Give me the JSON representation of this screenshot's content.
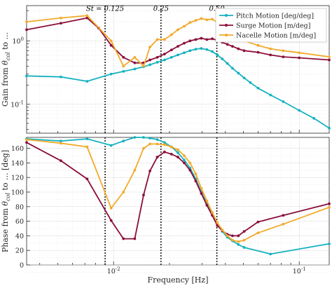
{
  "chart_data": [
    {
      "type": "line",
      "panel": "gain",
      "xscale": "log",
      "yscale": "log",
      "xlim": [
        0.0034,
        0.145
      ],
      "ylim": [
        0.035,
        3.6
      ],
      "ylabel": "Gain from θ_col to ...",
      "yticks": [
        {
          "value": 0.1,
          "label": "10^-1"
        },
        {
          "value": 1,
          "label": "10^0"
        }
      ],
      "grid": true,
      "legend": "top-right",
      "annotations": [
        {
          "x": 0.009,
          "label": "St = 0.125"
        },
        {
          "x": 0.018,
          "label": "0.25"
        },
        {
          "x": 0.036,
          "label": "0.50"
        }
      ],
      "series": [
        {
          "name": "Pitch Motion [deg/deg]",
          "color": "#17b2c0",
          "x": [
            0.0034,
            0.0052,
            0.0072,
            0.0097,
            0.0113,
            0.013,
            0.0145,
            0.0157,
            0.0172,
            0.0188,
            0.0205,
            0.0222,
            0.024,
            0.0258,
            0.0277,
            0.0297,
            0.0318,
            0.034,
            0.0362,
            0.0385,
            0.041,
            0.0437,
            0.047,
            0.0505,
            0.0545,
            0.06,
            0.07,
            0.082,
            0.1,
            0.12,
            0.145
          ],
          "y": [
            0.28,
            0.27,
            0.23,
            0.3,
            0.33,
            0.36,
            0.39,
            0.42,
            0.46,
            0.5,
            0.55,
            0.6,
            0.65,
            0.7,
            0.74,
            0.76,
            0.73,
            0.68,
            0.6,
            0.52,
            0.44,
            0.37,
            0.31,
            0.26,
            0.22,
            0.18,
            0.14,
            0.11,
            0.08,
            0.06,
            0.042
          ]
        },
        {
          "name": "Surge Motion [m/deg]",
          "color": "#8b0e3b",
          "x": [
            0.0034,
            0.0052,
            0.0072,
            0.0083,
            0.0097,
            0.0113,
            0.013,
            0.0145,
            0.0157,
            0.0172,
            0.0188,
            0.0205,
            0.0222,
            0.024,
            0.0258,
            0.0277,
            0.0297,
            0.0318,
            0.034,
            0.0362,
            0.0385,
            0.041,
            0.0437,
            0.047,
            0.0505,
            0.06,
            0.07,
            0.082,
            0.1,
            0.145
          ],
          "y": [
            1.5,
            1.9,
            2.3,
            1.6,
            0.85,
            0.55,
            0.45,
            0.45,
            0.5,
            0.55,
            0.62,
            0.72,
            0.82,
            0.92,
            1.0,
            1.05,
            1.1,
            1.05,
            1.08,
            1.02,
            0.95,
            0.88,
            0.82,
            0.75,
            0.7,
            0.66,
            0.6,
            0.56,
            0.54,
            0.5
          ]
        },
        {
          "name": "Nacelle Motion [m/deg]",
          "color": "#f2aa2b",
          "x": [
            0.0034,
            0.0052,
            0.0072,
            0.0097,
            0.0113,
            0.013,
            0.0145,
            0.0157,
            0.0172,
            0.0188,
            0.0205,
            0.0222,
            0.024,
            0.0258,
            0.0277,
            0.0297,
            0.0318,
            0.034,
            0.0362,
            0.0385,
            0.041,
            0.0437,
            0.047,
            0.0505,
            0.06,
            0.07,
            0.082,
            0.1,
            0.145
          ],
          "y": [
            2.0,
            2.3,
            2.5,
            1.0,
            0.4,
            0.55,
            0.4,
            0.8,
            1.05,
            1.05,
            1.25,
            1.5,
            1.7,
            1.95,
            2.1,
            2.25,
            2.15,
            2.2,
            1.95,
            1.75,
            1.55,
            1.35,
            1.15,
            1.0,
            0.85,
            0.75,
            0.7,
            0.65,
            0.56
          ]
        }
      ]
    },
    {
      "type": "line",
      "panel": "phase",
      "xscale": "log",
      "xlim": [
        0.0034,
        0.145
      ],
      "ylim": [
        0,
        175
      ],
      "xlabel": "Frequency [Hz]",
      "ylabel": "Phase from θ_col to ... [deg]",
      "yticks": [
        0,
        20,
        40,
        60,
        80,
        100,
        120,
        140,
        160
      ],
      "xticks": [
        {
          "value": 0.01,
          "label": "10^-2"
        },
        {
          "value": 0.1,
          "label": "10^-1"
        }
      ],
      "grid": true,
      "series": [
        {
          "name": "Pitch Motion [deg/deg]",
          "color": "#17b2c0",
          "x": [
            0.0034,
            0.0052,
            0.0072,
            0.0097,
            0.0113,
            0.013,
            0.0145,
            0.0157,
            0.0172,
            0.0188,
            0.0205,
            0.0222,
            0.024,
            0.0258,
            0.0277,
            0.0297,
            0.0318,
            0.034,
            0.0362,
            0.0385,
            0.041,
            0.0437,
            0.047,
            0.0505,
            0.07,
            0.145
          ],
          "y": [
            173,
            170,
            173,
            164,
            170,
            175,
            175,
            174,
            172,
            168,
            162,
            154,
            144,
            133,
            118,
            100,
            84,
            70,
            56,
            46,
            38,
            33,
            28,
            24,
            15,
            29
          ]
        },
        {
          "name": "Surge Motion [m/deg]",
          "color": "#8b0e3b",
          "x": [
            0.0034,
            0.0052,
            0.0072,
            0.0097,
            0.0113,
            0.013,
            0.0145,
            0.0157,
            0.0172,
            0.0188,
            0.0205,
            0.0222,
            0.024,
            0.0258,
            0.0277,
            0.0297,
            0.0318,
            0.034,
            0.0362,
            0.0385,
            0.041,
            0.0437,
            0.047,
            0.0505,
            0.06,
            0.082,
            0.145
          ],
          "y": [
            168,
            143,
            118,
            61,
            36,
            36,
            96,
            129,
            148,
            155,
            152,
            148,
            140,
            130,
            115,
            98,
            82,
            68,
            54,
            47,
            42,
            40,
            40,
            46,
            59,
            68,
            84
          ]
        },
        {
          "name": "Nacelle Motion [m/deg]",
          "color": "#f2aa2b",
          "x": [
            0.0034,
            0.0052,
            0.0072,
            0.0097,
            0.0113,
            0.013,
            0.0145,
            0.0157,
            0.0172,
            0.0188,
            0.0205,
            0.0222,
            0.024,
            0.0258,
            0.0277,
            0.0297,
            0.0318,
            0.034,
            0.0362,
            0.0385,
            0.041,
            0.0437,
            0.047,
            0.0505,
            0.06,
            0.082,
            0.145
          ],
          "y": [
            172,
            167,
            162,
            78,
            100,
            130,
            160,
            166,
            166,
            165,
            162,
            158,
            150,
            140,
            125,
            105,
            88,
            72,
            58,
            48,
            40,
            34,
            32,
            34,
            44,
            56,
            79
          ]
        }
      ]
    }
  ]
}
